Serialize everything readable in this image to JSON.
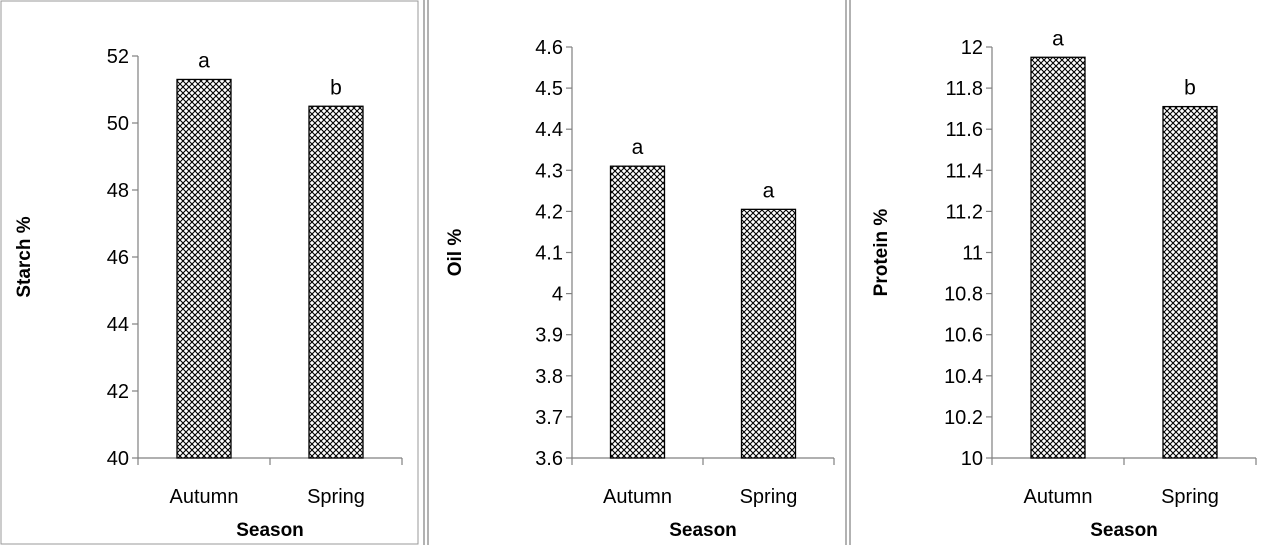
{
  "colors": {
    "bar_stroke": "#000000",
    "bar_pattern": "crosshatch-dots",
    "panel_border": "#999999",
    "axis": "#808080"
  },
  "chart_data": [
    {
      "type": "bar",
      "categories": [
        "Autumn",
        "Spring"
      ],
      "values": [
        51.3,
        50.5
      ],
      "significance": [
        "a",
        "b"
      ],
      "xlabel": "Season",
      "ylabel": "Starch %",
      "ylim": [
        40,
        52
      ],
      "yticks": [
        "40",
        "42",
        "44",
        "46",
        "48",
        "50",
        "52"
      ],
      "grid": false,
      "legend": "none"
    },
    {
      "type": "bar",
      "categories": [
        "Autumn",
        "Spring"
      ],
      "values": [
        4.31,
        4.205
      ],
      "significance": [
        "a",
        "a"
      ],
      "xlabel": "Season",
      "ylabel": "Oil %",
      "ylim": [
        3.6,
        4.6
      ],
      "yticks": [
        "3.6",
        "3.7",
        "3.8",
        "3.9",
        "4",
        "4.1",
        "4.2",
        "4.3",
        "4.4",
        "4.5",
        "4.6"
      ],
      "grid": false,
      "legend": "none"
    },
    {
      "type": "bar",
      "categories": [
        "Autumn",
        "Spring"
      ],
      "values": [
        11.95,
        11.71
      ],
      "significance": [
        "a",
        "b"
      ],
      "xlabel": "Season",
      "ylabel": "Protein %",
      "ylim": [
        10,
        12
      ],
      "yticks": [
        "10",
        "10.2",
        "10.4",
        "10.6",
        "10.8",
        "11",
        "11.2",
        "11.4",
        "11.6",
        "11.8",
        "12"
      ],
      "grid": false,
      "legend": "none"
    }
  ]
}
